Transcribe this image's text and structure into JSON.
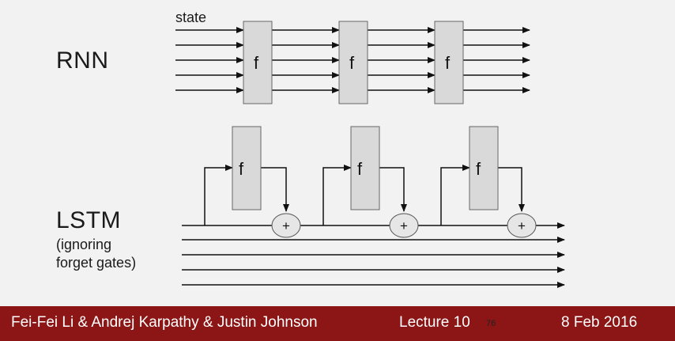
{
  "diagram": {
    "rnn_label": "RNN",
    "state_label": "state",
    "lstm_label": "LSTM",
    "lstm_note_1": "(ignoring",
    "lstm_note_2": "forget gates)",
    "function_label": "f",
    "plus_label": "+"
  },
  "footer": {
    "authors": "Fei-Fei Li & Andrej Karpathy & Justin Johnson",
    "lecture": "Lecture 10",
    "page": "76",
    "date": "8 Feb 2016"
  },
  "colors": {
    "accent": "#8c1515",
    "box_fill": "#d9d9d9",
    "background": "#f2f2f2"
  }
}
